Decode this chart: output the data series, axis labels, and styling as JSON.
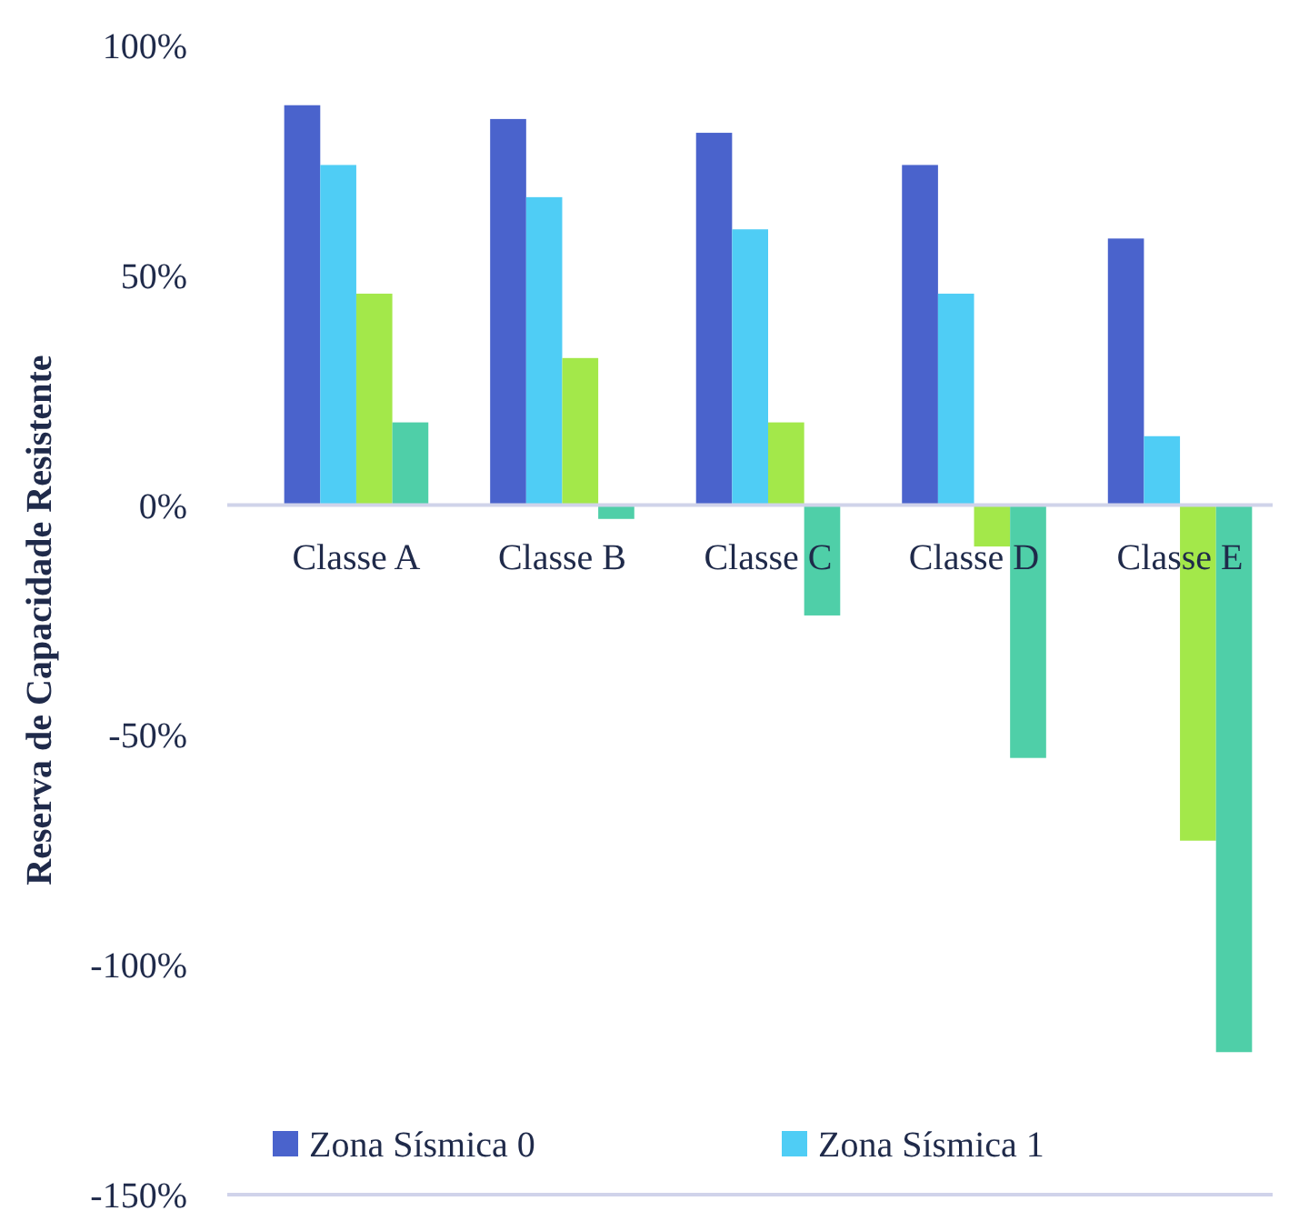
{
  "chart_data": {
    "type": "bar",
    "ylabel": "Reserva de Capacidade Resistente",
    "categories": [
      "Classe A",
      "Classe B",
      "Classe C",
      "Classe D",
      "Classe E"
    ],
    "series": [
      {
        "name": "Zona Sísmica 0",
        "color": "#4a63cc",
        "values": [
          87,
          84,
          81,
          74,
          58
        ]
      },
      {
        "name": "Zona Sísmica 1",
        "color": "#4fcdf5",
        "values": [
          74,
          67,
          60,
          46,
          15
        ]
      },
      {
        "color": "#a3e84a",
        "values": [
          46,
          32,
          18,
          -9,
          -73
        ]
      },
      {
        "color": "#4fcfa8",
        "values": [
          18,
          -3,
          -24,
          -55,
          -119
        ]
      }
    ],
    "ylim": [
      -150,
      100
    ],
    "yticks": [
      {
        "value": -150,
        "label": "-150%"
      },
      {
        "value": -100,
        "label": "-100%"
      },
      {
        "value": -50,
        "label": "-50%"
      },
      {
        "value": 0,
        "label": "0%"
      },
      {
        "value": 50,
        "label": "50%"
      },
      {
        "value": 100,
        "label": "100%"
      }
    ],
    "legend": "bottom"
  }
}
